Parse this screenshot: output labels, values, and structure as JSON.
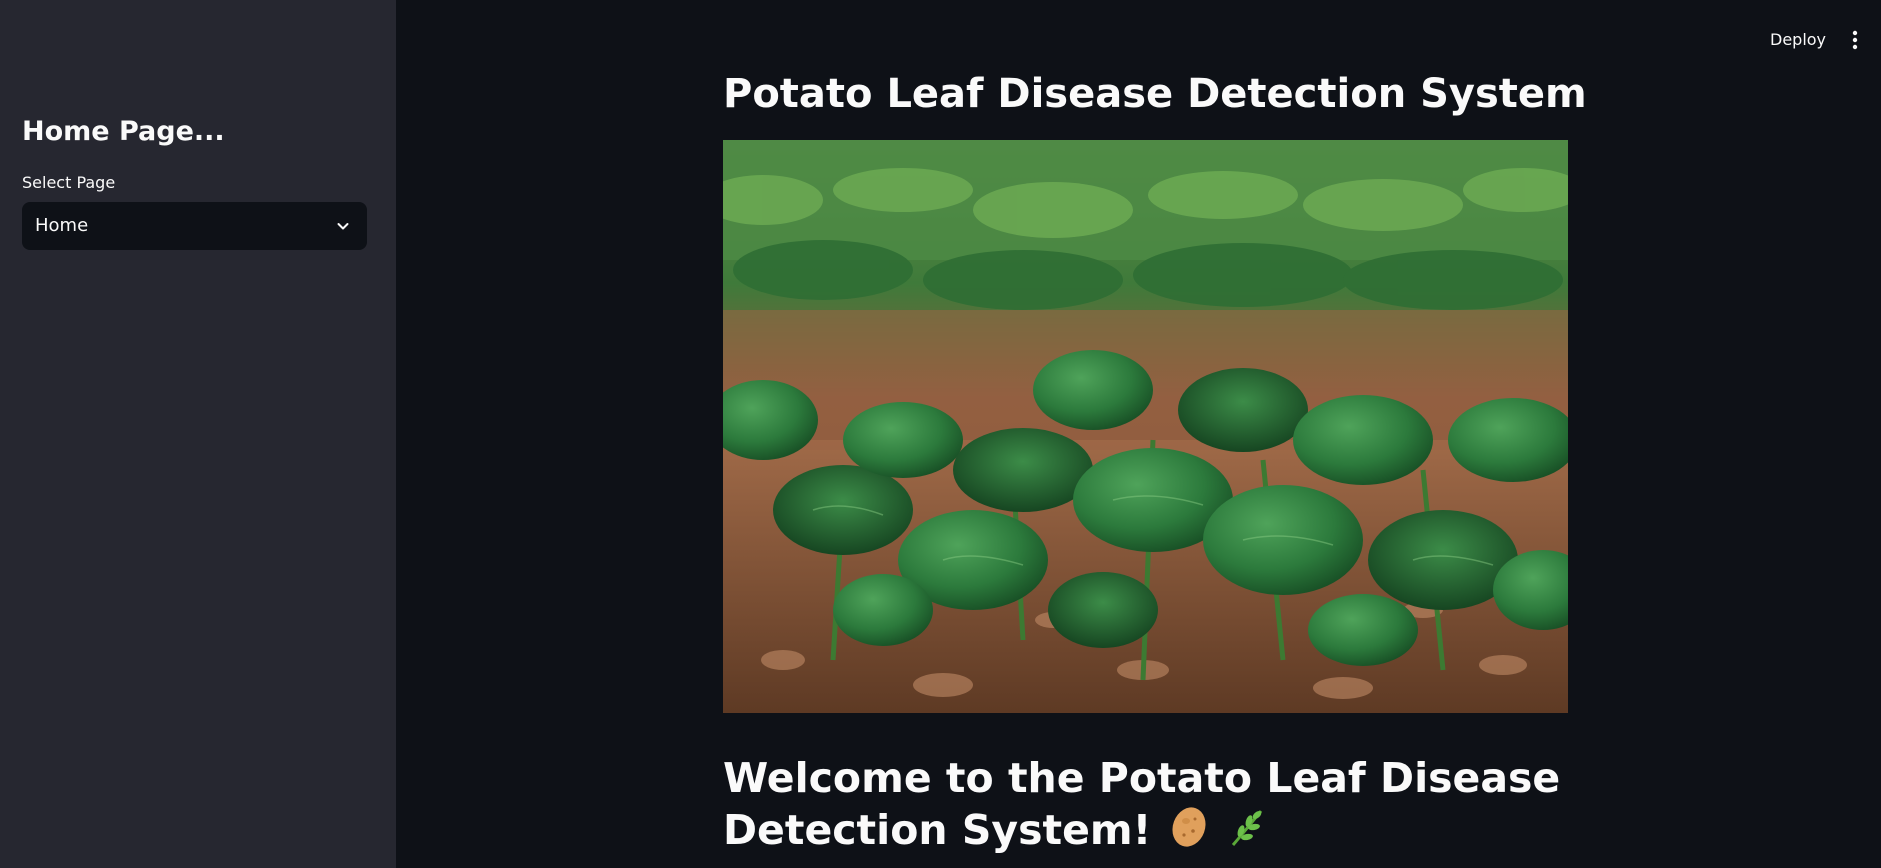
{
  "sidebar": {
    "title": "Home Page...",
    "select_label": "Select Page",
    "select_value": "Home"
  },
  "header": {
    "deploy_label": "Deploy"
  },
  "main": {
    "title": "Potato Leaf Disease Detection System",
    "welcome": "Welcome to the Potato Leaf Disease Detection System!"
  },
  "icons": {
    "select_chevron": "chevron-down-icon",
    "menu": "kebab-menu-icon",
    "potato": "potato-emoji",
    "herb": "herb-emoji"
  },
  "colors": {
    "background": "#0e1117",
    "sidebar": "#262730",
    "text": "#fafafa"
  }
}
